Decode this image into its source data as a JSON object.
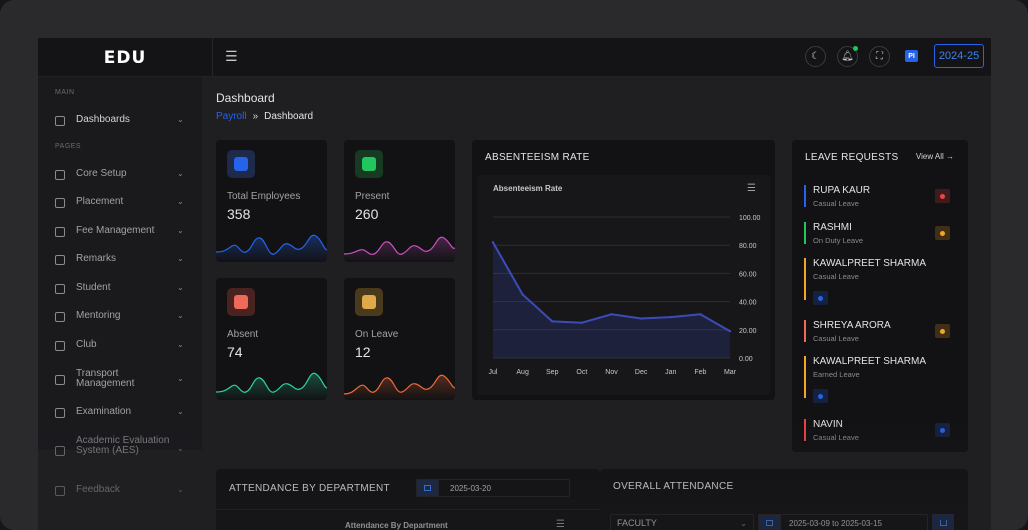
{
  "header": {
    "logo": "EDU",
    "avatar": "PI",
    "year": "2024-25"
  },
  "sidebar": {
    "sections": [
      "MAIN",
      "PAGES"
    ],
    "items": [
      {
        "label": "Dashboards",
        "icon": "home-icon"
      },
      {
        "label": "Core Setup",
        "icon": "grid-icon"
      },
      {
        "label": "Placement",
        "icon": "briefcase-icon"
      },
      {
        "label": "Fee Management",
        "icon": "fee-icon"
      },
      {
        "label": "Remarks",
        "icon": "monitor-icon"
      },
      {
        "label": "Student",
        "icon": "student-icon"
      },
      {
        "label": "Mentoring",
        "icon": "mentoring-icon"
      },
      {
        "label": "Club",
        "icon": "club-icon"
      },
      {
        "label": "Transport Management",
        "icon": "transport-icon"
      },
      {
        "label": "Examination",
        "icon": "exam-icon"
      },
      {
        "label": "Academic Evaluation System (AES)",
        "icon": "academic-icon"
      },
      {
        "label": "Feedback",
        "icon": "feedback-icon"
      }
    ]
  },
  "page": {
    "title": "Dashboard",
    "breadcrumb": {
      "link": "Payroll",
      "sep": "»",
      "current": "Dashboard"
    }
  },
  "stats": [
    {
      "label": "Total Employees",
      "value": "358",
      "color": "#2563eb"
    },
    {
      "label": "Present",
      "value": "260",
      "color": "#22c55e"
    },
    {
      "label": "Absent",
      "value": "74",
      "color": "#ef6a5a"
    },
    {
      "label": "On Leave",
      "value": "12",
      "color": "#e0a94a"
    }
  ],
  "absenteeism": {
    "card_title": "ABSENTEEISM RATE",
    "chart_data": {
      "type": "area",
      "title": "Absenteeism Rate",
      "categories": [
        "Jul",
        "Aug",
        "Sep",
        "Oct",
        "Nov",
        "Dec",
        "Jan",
        "Feb",
        "Mar"
      ],
      "values": [
        82,
        45,
        26,
        25,
        31,
        28,
        29,
        31,
        19
      ],
      "ylim": [
        0,
        100
      ],
      "yticks": [
        "100.00",
        "80.00",
        "60.00",
        "40.00",
        "20.00",
        "0.00"
      ],
      "grid": true,
      "color": "#3b4bb8"
    }
  },
  "leave_requests": {
    "title": "LEAVE REQUESTS",
    "view_all": "View All →",
    "items": [
      {
        "name": "RUPA KAUR",
        "type": "Casual Leave",
        "bar": "#2563eb",
        "status": "#ef4444"
      },
      {
        "name": "RASHMI",
        "type": "On Duty Leave",
        "bar": "#22c55e",
        "status": "#f5a524"
      },
      {
        "name": "KAWALPREET SHARMA",
        "type": "Casual Leave",
        "bar": "#f5a524",
        "status": "#2563eb"
      },
      {
        "name": "SHREYA ARORA",
        "type": "Casual Leave",
        "bar": "#ef6a5a",
        "status": "#f5a524"
      },
      {
        "name": "KAWALPREET SHARMA",
        "type": "Earned Leave",
        "bar": "#f5a524",
        "status": "#2563eb"
      },
      {
        "name": "NAVIN",
        "type": "Casual Leave",
        "bar": "#ef4444",
        "status": "#2563eb"
      }
    ]
  },
  "attendance_dept": {
    "title": "ATTENDANCE BY DEPARTMENT",
    "date": "2025-03-20",
    "chart_title": "Attendance By Department"
  },
  "overall_attendance": {
    "title": "OVERALL ATTENDANCE",
    "select": "FACULTY",
    "date_range": "2025-03-09 to 2025-03-15"
  }
}
